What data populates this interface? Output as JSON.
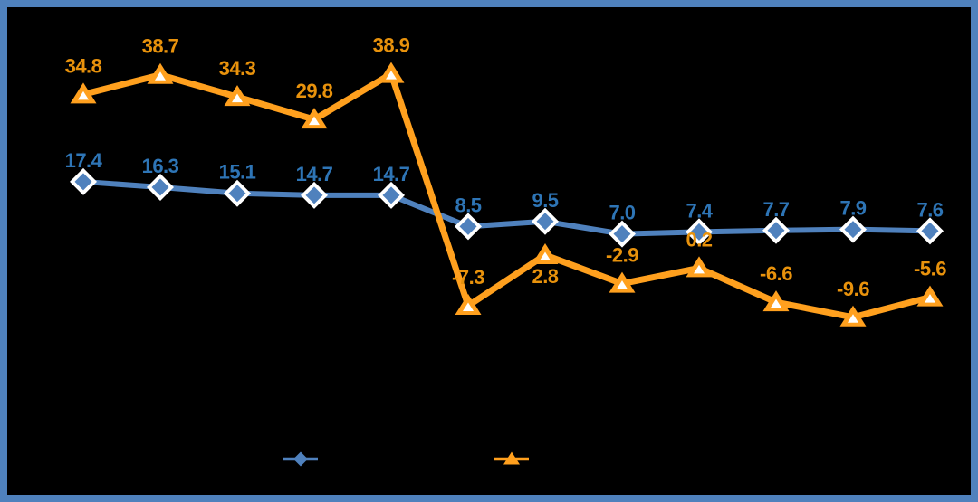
{
  "chart": {
    "background_color": "#000000",
    "frame_border_color": "#4F81BD",
    "title": "",
    "visible_axis_labels": false,
    "chart_data": {
      "type": "line",
      "num_points": 12,
      "categories_visible": false,
      "grid": false,
      "legend_position": "bottom",
      "series": [
        {
          "name": "blue-diamond-series",
          "marker": "diamond",
          "line_color": "#4F81BD",
          "marker_fill": "#4F81BD",
          "marker_outline": "#FFFFFF",
          "label_color": "#2E75B6",
          "values": [
            17.4,
            16.3,
            15.1,
            14.7,
            14.7,
            8.5,
            9.5,
            7.0,
            7.4,
            7.7,
            7.9,
            7.6
          ],
          "labels": [
            "17.4",
            "16.3",
            "15.1",
            "14.7",
            "14.7",
            "8.5",
            "9.5",
            "7.0",
            "7.4",
            "7.7",
            "7.9",
            "7.6"
          ],
          "label_positions": [
            "above",
            "above",
            "above",
            "above",
            "above",
            "above",
            "above",
            "above",
            "above",
            "above",
            "above",
            "above"
          ]
        },
        {
          "name": "orange-triangle-series",
          "marker": "triangle",
          "line_color": "#FFA01E",
          "marker_fill": "#FFA01E",
          "marker_outline": "#FFFFFF",
          "label_color": "#E8920C",
          "values": [
            34.8,
            38.7,
            34.3,
            29.8,
            38.9,
            -7.3,
            2.8,
            -2.9,
            0.2,
            -6.6,
            -9.6,
            -5.6
          ],
          "labels": [
            "34.8",
            "38.7",
            "34.3",
            "29.8",
            "38.9",
            "-7.3",
            "2.8",
            "-2.9",
            "0.2",
            "-6.6",
            "-9.6",
            "-5.6"
          ],
          "label_positions": [
            "above",
            "above",
            "above",
            "above",
            "above",
            "above",
            "below",
            "above",
            "above",
            "above",
            "above",
            "above"
          ]
        }
      ],
      "legend": {
        "items": [
          {
            "name": "legend-blue-diamond",
            "marker": "diamond",
            "color": "#4F81BD",
            "label": ""
          },
          {
            "name": "legend-orange-triangle",
            "marker": "triangle",
            "color": "#FFA01E",
            "label": ""
          }
        ]
      }
    }
  }
}
